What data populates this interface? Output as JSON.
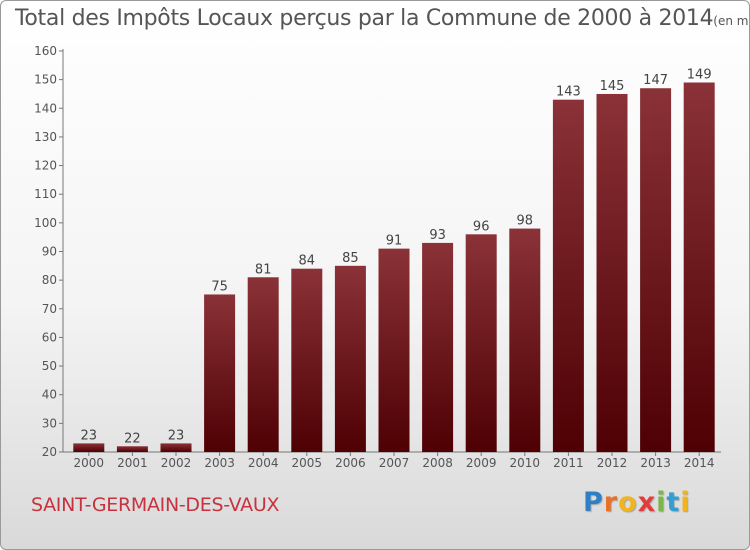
{
  "header": {
    "title": "Total des Impôts Locaux perçus par la Commune de 2000 à 2014",
    "unit": "(en milliers d'€)"
  },
  "footer": {
    "commune": "SAINT-GERMAIN-DES-VAUX",
    "logo_letters": [
      "P",
      "r",
      "o",
      "x",
      "i",
      "t",
      "i"
    ],
    "logo_colors": [
      "#2f7fc6",
      "#e8702a",
      "#f0b322",
      "#e23b3b",
      "#7ab648",
      "#2f9fd6",
      "#f0b322"
    ]
  },
  "colors": {
    "bar_top": "#8a3237",
    "bar_bottom": "#4e0003",
    "accent": "#c8323e"
  },
  "chart_data": {
    "type": "bar",
    "title": "Total des Impôts Locaux perçus par la Commune de 2000 à 2014",
    "categories": [
      "2000",
      "2001",
      "2002",
      "2003",
      "2004",
      "2005",
      "2006",
      "2007",
      "2008",
      "2009",
      "2010",
      "2011",
      "2012",
      "2013",
      "2014"
    ],
    "values": [
      23,
      22,
      23,
      75,
      81,
      84,
      85,
      91,
      93,
      96,
      98,
      143,
      145,
      147,
      149
    ],
    "ylim": [
      20,
      160
    ],
    "yticks": [
      20,
      30,
      40,
      50,
      60,
      70,
      80,
      90,
      100,
      110,
      120,
      130,
      140,
      150,
      160
    ],
    "xlabel": "",
    "ylabel": "",
    "grid": false
  }
}
